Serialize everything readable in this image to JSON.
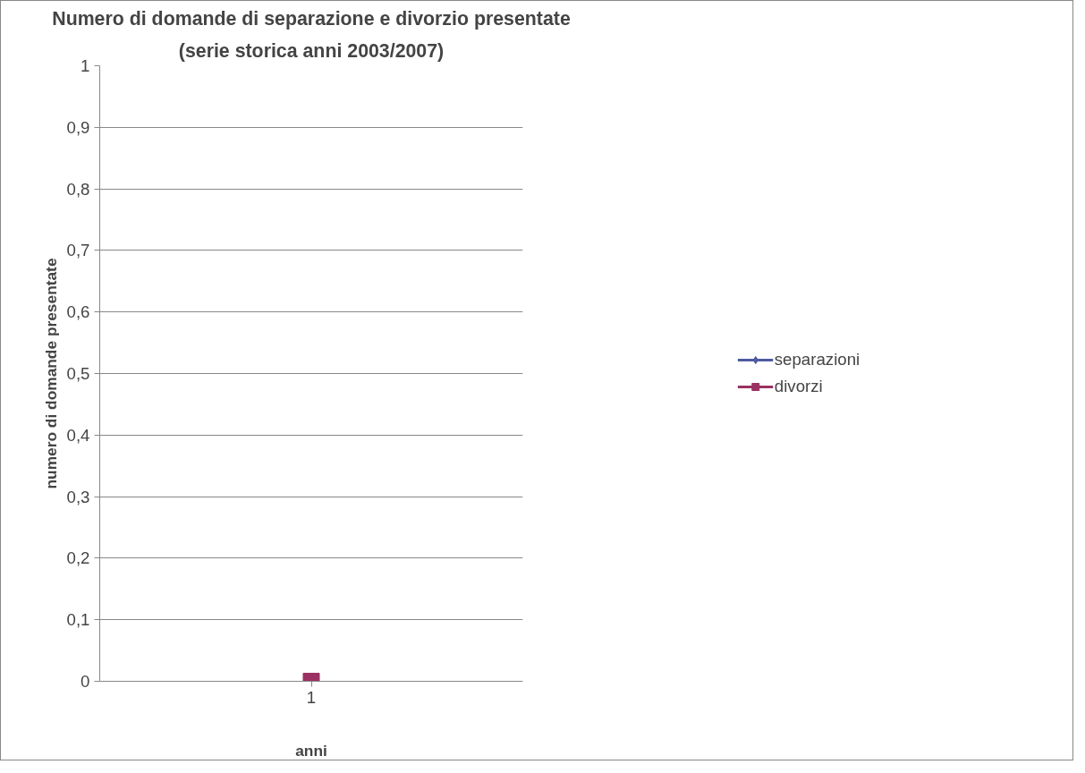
{
  "chart_data": {
    "type": "line",
    "title": "Numero di domande di separazione e divorzio presentate",
    "subtitle": "(serie storica anni 2003/2007)",
    "xlabel": "anni",
    "ylabel": "numero di domande presentate",
    "categories": [
      "1"
    ],
    "series": [
      {
        "name": "separazioni",
        "color": "#4f5b9f",
        "marker": "diamond",
        "values": [
          null
        ]
      },
      {
        "name": "divorzi",
        "color": "#9b3163",
        "marker": "square",
        "values": [
          0
        ]
      }
    ],
    "ylim": [
      0,
      1
    ],
    "yticks": [
      0,
      {
        "value": 0.1,
        "label": "0,1"
      },
      {
        "value": 0.2,
        "label": "0,2"
      },
      {
        "value": 0.3,
        "label": "0,3"
      },
      {
        "value": 0.4,
        "label": "0,4"
      },
      {
        "value": 0.5,
        "label": "0,5"
      },
      {
        "value": 0.6,
        "label": "0,6"
      },
      {
        "value": 0.7,
        "label": "0,7"
      },
      {
        "value": 0.8,
        "label": "0,8"
      },
      {
        "value": 0.9,
        "label": "0,9"
      },
      1
    ],
    "grid": "y",
    "legend": "right"
  }
}
